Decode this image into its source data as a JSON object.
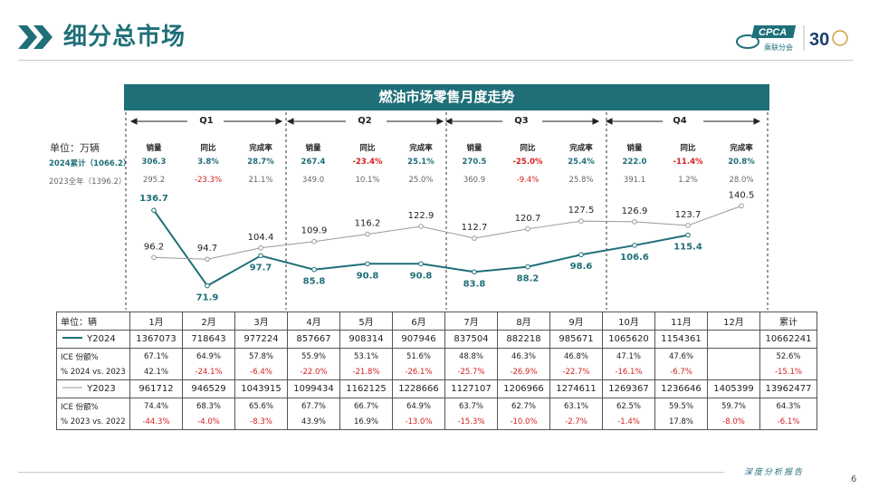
{
  "header": {
    "title": "细分总市场",
    "logo_text": "CPCA",
    "logo_sub": "乘联分会",
    "anniv": "30"
  },
  "colors": {
    "accent": "#1f6f78",
    "series2024": "#1f6f78",
    "series2023": "#999999",
    "negative": "#d62020"
  },
  "chart_title": "燃油市场零售月度走势",
  "quarters": [
    "Q1",
    "Q2",
    "Q3",
    "Q4"
  ],
  "unit_top": "单位：万辆",
  "summary": {
    "col_headers": [
      "销量",
      "同比",
      "完成率"
    ],
    "rows": [
      {
        "label": "2024累计（1066.2）",
        "values": [
          "306.3",
          "3.8%",
          "28.7%",
          "267.4",
          "-23.4%",
          "25.1%",
          "270.5",
          "-25.0%",
          "25.4%",
          "222.0",
          "-11.4%",
          "20.8%"
        ]
      },
      {
        "label": "2023全年（1396.2）",
        "values": [
          "295.2",
          "-23.3%",
          "21.1%",
          "349.0",
          "10.1%",
          "25.0%",
          "360.9",
          "-9.4%",
          "25.8%",
          "391.1",
          "1.2%",
          "28.0%"
        ]
      }
    ]
  },
  "chart_data": {
    "type": "line",
    "categories": [
      "1月",
      "2月",
      "3月",
      "4月",
      "5月",
      "6月",
      "7月",
      "8月",
      "9月",
      "10月",
      "11月",
      "12月"
    ],
    "ylabel": "",
    "series": [
      {
        "name": "Y2024",
        "values": [
          136.7,
          71.9,
          97.7,
          85.8,
          90.8,
          90.8,
          83.8,
          88.2,
          98.6,
          106.6,
          115.4,
          null
        ]
      },
      {
        "name": "Y2023",
        "values": [
          96.2,
          94.7,
          104.4,
          109.9,
          116.2,
          122.9,
          112.7,
          120.7,
          127.5,
          126.9,
          123.7,
          140.5
        ]
      }
    ]
  },
  "table": {
    "unit": "单位：辆",
    "months": [
      "1月",
      "2月",
      "3月",
      "4月",
      "5月",
      "6月",
      "7月",
      "8月",
      "9月",
      "10月",
      "11月",
      "12月",
      "累计"
    ],
    "y2024": {
      "label": "Y2024",
      "sales": [
        "1367073",
        "718643",
        "977224",
        "857667",
        "908314",
        "907946",
        "837504",
        "882218",
        "985671",
        "1065620",
        "1154361",
        "",
        "10662241"
      ],
      "share_label": "ICE 份额%",
      "share": [
        "67.1%",
        "64.9%",
        "57.8%",
        "55.9%",
        "53.1%",
        "51.6%",
        "48.8%",
        "46.3%",
        "46.8%",
        "47.1%",
        "47.6%",
        "",
        "52.6%"
      ],
      "yoy_label": "% 2024 vs. 2023",
      "yoy": [
        "42.1%",
        "-24.1%",
        "-6.4%",
        "-22.0%",
        "-21.8%",
        "-26.1%",
        "-25.7%",
        "-26.9%",
        "-22.7%",
        "-16.1%",
        "-6.7%",
        "",
        "-15.1%"
      ]
    },
    "y2023": {
      "label": "Y2023",
      "sales": [
        "961712",
        "946529",
        "1043915",
        "1099434",
        "1162125",
        "1228666",
        "1127107",
        "1206966",
        "1274611",
        "1269367",
        "1236646",
        "1405399",
        "13962477"
      ],
      "share_label": "ICE 份额%",
      "share": [
        "74.4%",
        "68.3%",
        "65.6%",
        "67.7%",
        "66.7%",
        "64.9%",
        "63.7%",
        "62.7%",
        "63.1%",
        "62.5%",
        "59.5%",
        "59.7%",
        "64.3%"
      ],
      "yoy_label": "% 2023 vs. 2022",
      "yoy": [
        "-44.3%",
        "-4.0%",
        "-8.3%",
        "43.9%",
        "16.9%",
        "-13.0%",
        "-15.3%",
        "-10.0%",
        "-2.7%",
        "-1.4%",
        "17.8%",
        "-8.0%",
        "-6.1%"
      ]
    }
  },
  "footer": {
    "text": "深度分析报告",
    "page": "6"
  }
}
